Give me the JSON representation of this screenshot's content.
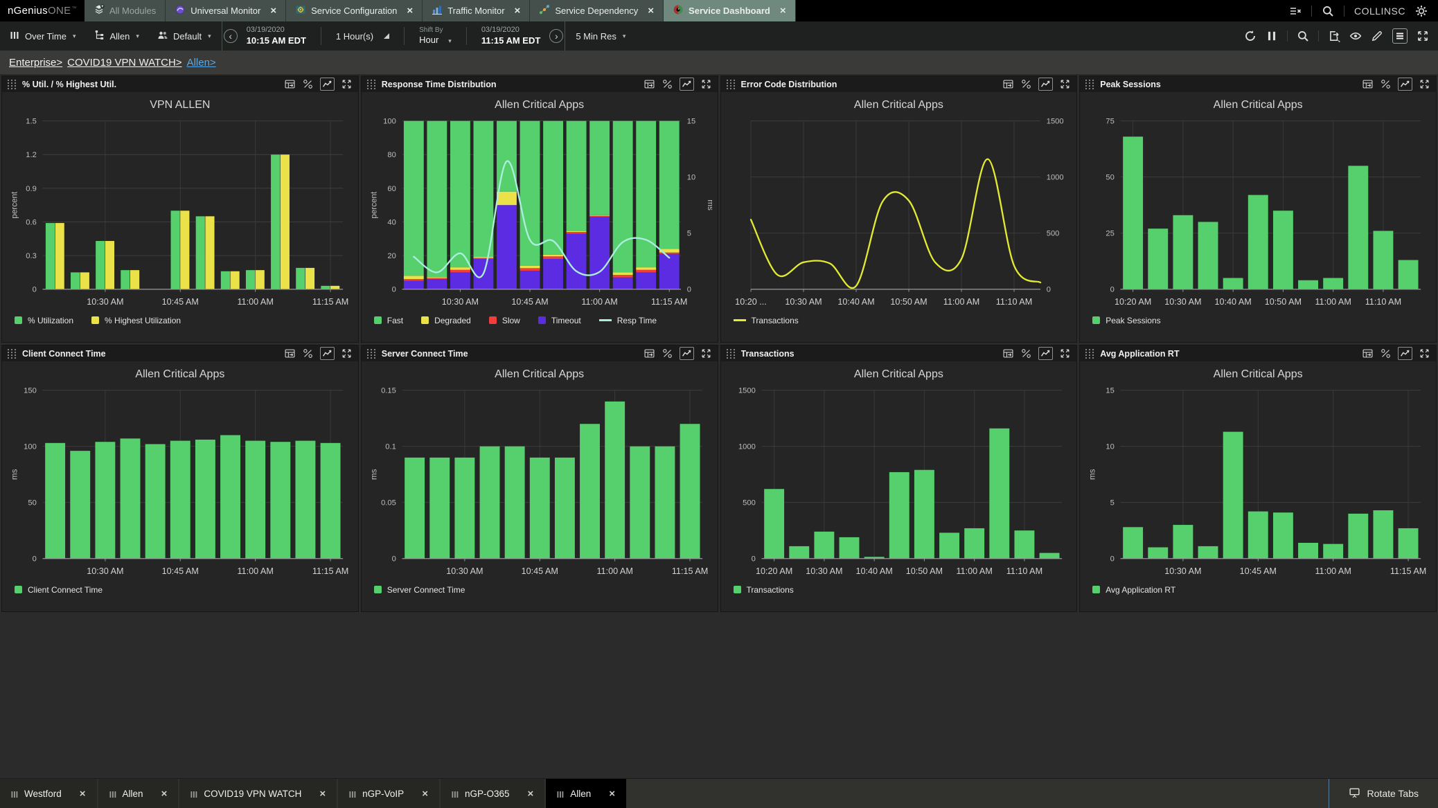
{
  "top_bar": {
    "logo_primary": "nGenius",
    "logo_secondary": "ONE",
    "logo_tm": "™",
    "tabs": [
      {
        "label": "All Modules",
        "icon": "all-modules-icon",
        "closable": false,
        "active": false
      },
      {
        "label": "Universal Monitor",
        "icon": "universal-monitor-icon",
        "closable": true,
        "active": false
      },
      {
        "label": "Service Configuration",
        "icon": "service-configuration-icon",
        "closable": true,
        "active": false
      },
      {
        "label": "Traffic Monitor",
        "icon": "traffic-monitor-icon",
        "closable": true,
        "active": false
      },
      {
        "label": "Service Dependency",
        "icon": "service-dependency-icon",
        "closable": true,
        "active": false
      },
      {
        "label": "Service Dashboard",
        "icon": "service-dashboard-icon",
        "closable": true,
        "active": true
      }
    ],
    "close_glyph": "×",
    "right_icons": [
      "hide-menu-icon",
      "search-icon",
      "gear-icon"
    ],
    "user": "COLLINSC"
  },
  "toolbar": {
    "view_mode": "Over Time",
    "context": "Allen",
    "profile": "Default",
    "prev_glyph": "‹",
    "next_glyph": "›",
    "start_date": "03/19/2020",
    "start_time": "10:15 AM EDT",
    "duration": "1 Hour(s)",
    "shift_by_label": "Shift By",
    "shift_by_value": "Hour",
    "end_date": "03/19/2020",
    "end_time": "11:15 AM EDT",
    "resolution": "5 Min Res",
    "right_icons": [
      "refresh-icon",
      "pause-icon",
      "search-icon",
      "export-icon",
      "eye-icon",
      "edit-icon",
      "list-view-icon",
      "fullscreen-icon"
    ]
  },
  "breadcrumb": [
    {
      "label": "Enterprise>",
      "style": "white"
    },
    {
      "label": "COVID19 VPN WATCH>",
      "style": "white"
    },
    {
      "label": "Allen>",
      "style": "blue"
    }
  ],
  "colors": {
    "green": "#55d06c",
    "yellow": "#ebe24a",
    "red": "#f03d3d",
    "purple": "#5c2ce2",
    "cyan_line": "#abeede",
    "yellow_line": "#e2ea33",
    "active_tab": "#70897e",
    "link_blue": "#57a9e8"
  },
  "panel_icons": [
    "table-view-icon",
    "panel-settings-icon",
    "chart-view-icon",
    "panel-expand-icon"
  ],
  "panels": [
    {
      "header": "% Util. / % Highest Util.",
      "chart_title": "VPN ALLEN",
      "legend": [
        {
          "label": "% Utilization",
          "color": "#55d06c",
          "shape": "square"
        },
        {
          "label": "% Highest Utilization",
          "color": "#ebe24a",
          "shape": "square"
        }
      ]
    },
    {
      "header": "Response Time Distribution",
      "chart_title": "Allen Critical Apps",
      "legend": [
        {
          "label": "Fast",
          "color": "#55d06c",
          "shape": "square"
        },
        {
          "label": "Degraded",
          "color": "#ebe24a",
          "shape": "square"
        },
        {
          "label": "Slow",
          "color": "#f03d3d",
          "shape": "square"
        },
        {
          "label": "Timeout",
          "color": "#5c2ce2",
          "shape": "square"
        },
        {
          "label": "Resp Time",
          "color": "#abeede",
          "shape": "line"
        }
      ]
    },
    {
      "header": "Error Code Distribution",
      "chart_title": "Allen Critical Apps",
      "legend": [
        {
          "label": "Transactions",
          "color": "#e2ea33",
          "shape": "line"
        }
      ]
    },
    {
      "header": "Peak Sessions",
      "chart_title": "Allen Critical Apps",
      "legend": [
        {
          "label": "Peak Sessions",
          "color": "#55d06c",
          "shape": "square"
        }
      ]
    },
    {
      "header": "Client Connect Time",
      "chart_title": "Allen Critical Apps",
      "legend": [
        {
          "label": "Client Connect Time",
          "color": "#55d06c",
          "shape": "square"
        }
      ]
    },
    {
      "header": "Server Connect Time",
      "chart_title": "Allen Critical Apps",
      "legend": [
        {
          "label": "Server Connect Time",
          "color": "#55d06c",
          "shape": "square"
        }
      ]
    },
    {
      "header": "Transactions",
      "chart_title": "Allen Critical Apps",
      "legend": [
        {
          "label": "Transactions",
          "color": "#55d06c",
          "shape": "square"
        }
      ]
    },
    {
      "header": "Avg Application RT",
      "chart_title": "Allen Critical Apps",
      "legend": [
        {
          "label": "Avg Application RT",
          "color": "#55d06c",
          "shape": "square"
        }
      ]
    }
  ],
  "chart_data": [
    {
      "type": "bar",
      "variant": "grouped",
      "title": "VPN ALLEN",
      "x": [
        "10:20 AM",
        "10:25 AM",
        "10:30 AM",
        "10:35 AM",
        "10:40 AM",
        "10:45 AM",
        "10:50 AM",
        "10:55 AM",
        "11:00 AM",
        "11:05 AM",
        "11:10 AM",
        "11:15 AM"
      ],
      "x_ticks": [
        {
          "i": 2,
          "label": "10:30 AM"
        },
        {
          "i": 5,
          "label": "10:45 AM"
        },
        {
          "i": 8,
          "label": "11:00 AM"
        },
        {
          "i": 11,
          "label": "11:15 AM"
        }
      ],
      "ylabel": "percent",
      "ylim": [
        0,
        1.5
      ],
      "yticks": [
        0,
        0.3,
        0.6,
        0.9,
        1.2,
        1.5
      ],
      "series": [
        {
          "name": "% Utilization",
          "color": "#55d06c",
          "values": [
            0.59,
            0.15,
            0.43,
            0.17,
            null,
            0.7,
            0.65,
            0.16,
            0.17,
            1.2,
            0.19,
            0.03
          ]
        },
        {
          "name": "% Highest Utilization",
          "color": "#ebe24a",
          "values": [
            0.59,
            0.15,
            0.43,
            0.17,
            null,
            0.7,
            0.65,
            0.16,
            0.17,
            1.2,
            0.19,
            0.03
          ]
        }
      ]
    },
    {
      "type": "bar",
      "variant": "stacked",
      "title": "Allen Critical Apps",
      "x": [
        "10:20 AM",
        "10:25 AM",
        "10:30 AM",
        "10:35 AM",
        "10:40 AM",
        "10:45 AM",
        "10:50 AM",
        "10:55 AM",
        "11:00 AM",
        "11:05 AM",
        "11:10 AM",
        "11:15 AM"
      ],
      "x_ticks": [
        {
          "i": 2,
          "label": "10:30 AM"
        },
        {
          "i": 5,
          "label": "10:45 AM"
        },
        {
          "i": 8,
          "label": "11:00 AM"
        },
        {
          "i": 11,
          "label": "11:15 AM"
        }
      ],
      "ylabel": "percent",
      "ylim": [
        0,
        100
      ],
      "yticks": [
        0,
        20,
        40,
        60,
        80,
        100
      ],
      "y2label": "ms",
      "y2lim": [
        0,
        15
      ],
      "y2ticks": [
        0,
        5,
        10,
        15
      ],
      "series": [
        {
          "name": "Timeout",
          "color": "#5c2ce2",
          "values": [
            5,
            6,
            10,
            18,
            50,
            11,
            18,
            33,
            43,
            7,
            10,
            21
          ]
        },
        {
          "name": "Slow",
          "color": "#f03d3d",
          "values": [
            1,
            0.6,
            1.5,
            0.6,
            0,
            1.5,
            1.5,
            1,
            0.6,
            1.5,
            1.5,
            0.8
          ]
        },
        {
          "name": "Degraded",
          "color": "#ebe24a",
          "values": [
            2,
            0.6,
            1.5,
            0.6,
            8,
            1.5,
            1,
            0.6,
            0.4,
            1.5,
            1.5,
            2.2
          ]
        },
        {
          "name": "Fast",
          "color": "#55d06c",
          "values": [
            92,
            92.8,
            87,
            80.8,
            42,
            86,
            79.5,
            65.4,
            56,
            90,
            87,
            76
          ]
        }
      ],
      "line": {
        "name": "Resp Time",
        "color": "#abeede",
        "axis": "y2",
        "values": [
          2.9,
          1.5,
          3.2,
          1.4,
          11.4,
          4.4,
          4.3,
          1.6,
          1.55,
          4.2,
          4.4,
          2.8
        ]
      }
    },
    {
      "type": "line",
      "title": "Allen Critical Apps",
      "x": [
        "10:20 AM",
        "10:25 AM",
        "10:30 AM",
        "10:35 AM",
        "10:40 AM",
        "10:45 AM",
        "10:50 AM",
        "10:55 AM",
        "11:00 AM",
        "11:05 AM",
        "11:10 AM",
        "11:15 AM"
      ],
      "x_ticks": [
        {
          "i": 0,
          "label": "10:20 ..."
        },
        {
          "i": 2,
          "label": "10:30 AM"
        },
        {
          "i": 4,
          "label": "10:40 AM"
        },
        {
          "i": 6,
          "label": "10:50 AM"
        },
        {
          "i": 8,
          "label": "11:00 AM"
        },
        {
          "i": 10,
          "label": "11:10 AM"
        }
      ],
      "y2lim": [
        0,
        1500
      ],
      "y2ticks": [
        0,
        500,
        1000,
        1500
      ],
      "line": {
        "name": "Transactions",
        "color": "#e2ea33",
        "axis": "y2",
        "values": [
          620,
          130,
          240,
          230,
          30,
          780,
          790,
          240,
          270,
          1160,
          210,
          60
        ]
      }
    },
    {
      "type": "bar",
      "title": "Allen Critical Apps",
      "x": [
        "10:20 AM",
        "10:25 AM",
        "10:30 AM",
        "10:35 AM",
        "10:40 AM",
        "10:45 AM",
        "10:50 AM",
        "10:55 AM",
        "11:00 AM",
        "11:05 AM",
        "11:10 AM",
        "11:15 AM"
      ],
      "x_ticks": [
        {
          "i": 0,
          "label": "10:20 AM"
        },
        {
          "i": 2,
          "label": "10:30 AM"
        },
        {
          "i": 4,
          "label": "10:40 AM"
        },
        {
          "i": 6,
          "label": "10:50 AM"
        },
        {
          "i": 8,
          "label": "11:00 AM"
        },
        {
          "i": 10,
          "label": "11:10 AM"
        }
      ],
      "ylim": [
        0,
        75
      ],
      "yticks": [
        0,
        25,
        50,
        75
      ],
      "series": [
        {
          "name": "Peak Sessions",
          "color": "#55d06c",
          "values": [
            68,
            27,
            33,
            30,
            5,
            42,
            35,
            4,
            5,
            55,
            26,
            13
          ]
        }
      ]
    },
    {
      "type": "bar",
      "title": "Allen Critical Apps",
      "x": [
        "10:20 AM",
        "10:25 AM",
        "10:30 AM",
        "10:35 AM",
        "10:40 AM",
        "10:45 AM",
        "10:50 AM",
        "10:55 AM",
        "11:00 AM",
        "11:05 AM",
        "11:10 AM",
        "11:15 AM"
      ],
      "x_ticks": [
        {
          "i": 2,
          "label": "10:30 AM"
        },
        {
          "i": 5,
          "label": "10:45 AM"
        },
        {
          "i": 8,
          "label": "11:00 AM"
        },
        {
          "i": 11,
          "label": "11:15 AM"
        }
      ],
      "ylabel": "ms",
      "ylim": [
        0,
        150
      ],
      "yticks": [
        0,
        50,
        100,
        150
      ],
      "series": [
        {
          "name": "Client Connect Time",
          "color": "#55d06c",
          "values": [
            103,
            96,
            104,
            107,
            102,
            105,
            106,
            110,
            105,
            104,
            105,
            103
          ]
        }
      ]
    },
    {
      "type": "bar",
      "title": "Allen Critical Apps",
      "x": [
        "10:20 AM",
        "10:25 AM",
        "10:30 AM",
        "10:35 AM",
        "10:40 AM",
        "10:45 AM",
        "10:50 AM",
        "10:55 AM",
        "11:00 AM",
        "11:05 AM",
        "11:10 AM",
        "11:15 AM"
      ],
      "x_ticks": [
        {
          "i": 2,
          "label": "10:30 AM"
        },
        {
          "i": 5,
          "label": "10:45 AM"
        },
        {
          "i": 8,
          "label": "11:00 AM"
        },
        {
          "i": 11,
          "label": "11:15 AM"
        }
      ],
      "ylabel": "ms",
      "ylim": [
        0,
        0.15
      ],
      "yticks": [
        0,
        0.05,
        0.1,
        0.15
      ],
      "series": [
        {
          "name": "Server Connect Time",
          "color": "#55d06c",
          "values": [
            0.09,
            0.09,
            0.09,
            0.1,
            0.1,
            0.09,
            0.09,
            0.12,
            0.14,
            0.1,
            0.1,
            0.12
          ]
        }
      ]
    },
    {
      "type": "bar",
      "title": "Allen Critical Apps",
      "x": [
        "10:20 AM",
        "10:25 AM",
        "10:30 AM",
        "10:35 AM",
        "10:40 AM",
        "10:45 AM",
        "10:50 AM",
        "10:55 AM",
        "11:00 AM",
        "11:05 AM",
        "11:10 AM",
        "11:15 AM"
      ],
      "x_ticks": [
        {
          "i": 0,
          "label": "10:20 AM"
        },
        {
          "i": 2,
          "label": "10:30 AM"
        },
        {
          "i": 4,
          "label": "10:40 AM"
        },
        {
          "i": 6,
          "label": "10:50 AM"
        },
        {
          "i": 8,
          "label": "11:00 AM"
        },
        {
          "i": 10,
          "label": "11:10 AM"
        }
      ],
      "ylim": [
        0,
        1500
      ],
      "yticks": [
        0,
        500,
        1000,
        1500
      ],
      "series": [
        {
          "name": "Transactions",
          "color": "#55d06c",
          "values": [
            620,
            110,
            240,
            190,
            15,
            770,
            790,
            230,
            270,
            1160,
            250,
            50
          ]
        }
      ]
    },
    {
      "type": "bar",
      "title": "Allen Critical Apps",
      "x": [
        "10:20 AM",
        "10:25 AM",
        "10:30 AM",
        "10:35 AM",
        "10:40 AM",
        "10:45 AM",
        "10:50 AM",
        "10:55 AM",
        "11:00 AM",
        "11:05 AM",
        "11:10 AM",
        "11:15 AM"
      ],
      "x_ticks": [
        {
          "i": 2,
          "label": "10:30 AM"
        },
        {
          "i": 5,
          "label": "10:45 AM"
        },
        {
          "i": 8,
          "label": "11:00 AM"
        },
        {
          "i": 11,
          "label": "11:15 AM"
        }
      ],
      "ylabel": "ms",
      "ylim": [
        0,
        15
      ],
      "yticks": [
        0,
        5,
        10,
        15
      ],
      "series": [
        {
          "name": "Avg Application RT",
          "color": "#55d06c",
          "values": [
            2.8,
            1,
            3,
            1.1,
            11.3,
            4.2,
            4.1,
            1.4,
            1.3,
            4,
            4.3,
            2.7
          ]
        }
      ]
    }
  ],
  "bottom_bar": {
    "tabs": [
      {
        "label": "Westford",
        "active": false
      },
      {
        "label": "Allen",
        "active": false
      },
      {
        "label": "COVID19 VPN WATCH",
        "active": false
      },
      {
        "label": "nGP-VoIP",
        "active": false
      },
      {
        "label": "nGP-O365",
        "active": false
      },
      {
        "label": "Allen",
        "active": true
      }
    ],
    "close_glyph": "×",
    "rotate_tabs_label": "Rotate Tabs"
  }
}
